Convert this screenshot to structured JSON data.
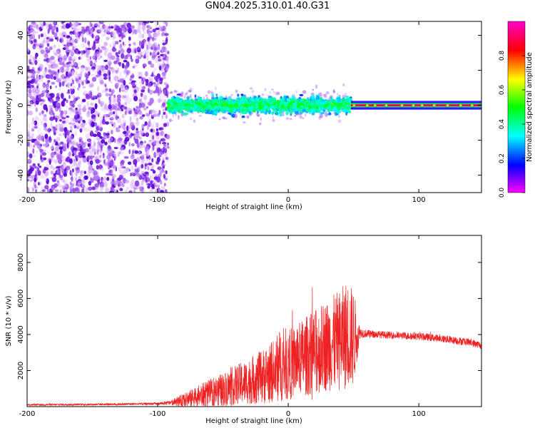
{
  "title": "GN04.2025.310.01.40.G31",
  "colors": {
    "snr_line": "#ee2222",
    "axis": "#000000",
    "colorbar": [
      "#ff00ff",
      "#0000ff",
      "#00ffff",
      "#00ff00",
      "#ffff00",
      "#ff0000",
      "#ff00cc"
    ]
  },
  "chart_data": [
    {
      "type": "heatmap",
      "title": "",
      "xlabel": "Height of straight line (km)",
      "ylabel": "Frequency (Hz)",
      "xlim": [
        -200,
        148
      ],
      "ylim": [
        -50,
        48
      ],
      "xticks": [
        -200,
        -100,
        0,
        100
      ],
      "xtick_labels": [
        "-200",
        "-100",
        "0",
        "100"
      ],
      "yticks": [
        -40,
        -20,
        0,
        20,
        40
      ],
      "ytick_labels": [
        "-40",
        "-20",
        "0",
        "20",
        "40"
      ],
      "colorbar": {
        "label": "Normalized spectral amplitude",
        "range": [
          0,
          1
        ],
        "ticks": [
          0,
          0.2,
          0.4,
          0.6,
          0.8
        ],
        "tick_labels": [
          "0.0",
          "0.2",
          "0.4",
          "0.6",
          "0.8"
        ]
      },
      "regions": [
        {
          "name": "noise",
          "x_range": [
            -200,
            -92
          ],
          "freq_range": [
            -50,
            48
          ],
          "amplitude": 0.15
        },
        {
          "name": "signal-band",
          "x_range": [
            -92,
            48
          ],
          "freq_center": 0,
          "freq_halfwidth": 8,
          "amplitude": 0.3
        },
        {
          "name": "tone",
          "x_range": [
            48,
            148
          ],
          "freq_center": 0,
          "freq_halfwidth": 1,
          "amplitude": 0.9
        }
      ]
    },
    {
      "type": "line",
      "title": "",
      "xlabel": "Height of straight line (km)",
      "ylabel": "SNR (10 * v/v)",
      "xlim": [
        -200,
        148
      ],
      "ylim": [
        0,
        9500
      ],
      "xticks": [
        -200,
        -100,
        0,
        100
      ],
      "xtick_labels": [
        "-200",
        "-100",
        "0",
        "100"
      ],
      "yticks": [
        2000,
        4000,
        6000,
        8000
      ],
      "ytick_labels": [
        "2000",
        "4000",
        "6000",
        "8000"
      ],
      "series": [
        {
          "name": "SNR",
          "x": [
            -200,
            -150,
            -100,
            -90,
            -80,
            -70,
            -60,
            -50,
            -40,
            -30,
            -20,
            -10,
            -5,
            0,
            10,
            20,
            30,
            40,
            45,
            50,
            55,
            60,
            80,
            100,
            120,
            140,
            148
          ],
          "mid": [
            100,
            120,
            160,
            220,
            350,
            550,
            750,
            950,
            1200,
            1400,
            1650,
            2000,
            2400,
            2300,
            2700,
            3000,
            3400,
            3700,
            4000,
            3800,
            4100,
            4050,
            3950,
            3900,
            3750,
            3550,
            3400
          ],
          "spread": [
            60,
            60,
            80,
            150,
            450,
            700,
            900,
            1100,
            1300,
            1500,
            1800,
            2100,
            2500,
            2300,
            2500,
            2800,
            3000,
            3300,
            3600,
            3200,
            350,
            250,
            230,
            250,
            250,
            250,
            250
          ]
        }
      ]
    }
  ]
}
